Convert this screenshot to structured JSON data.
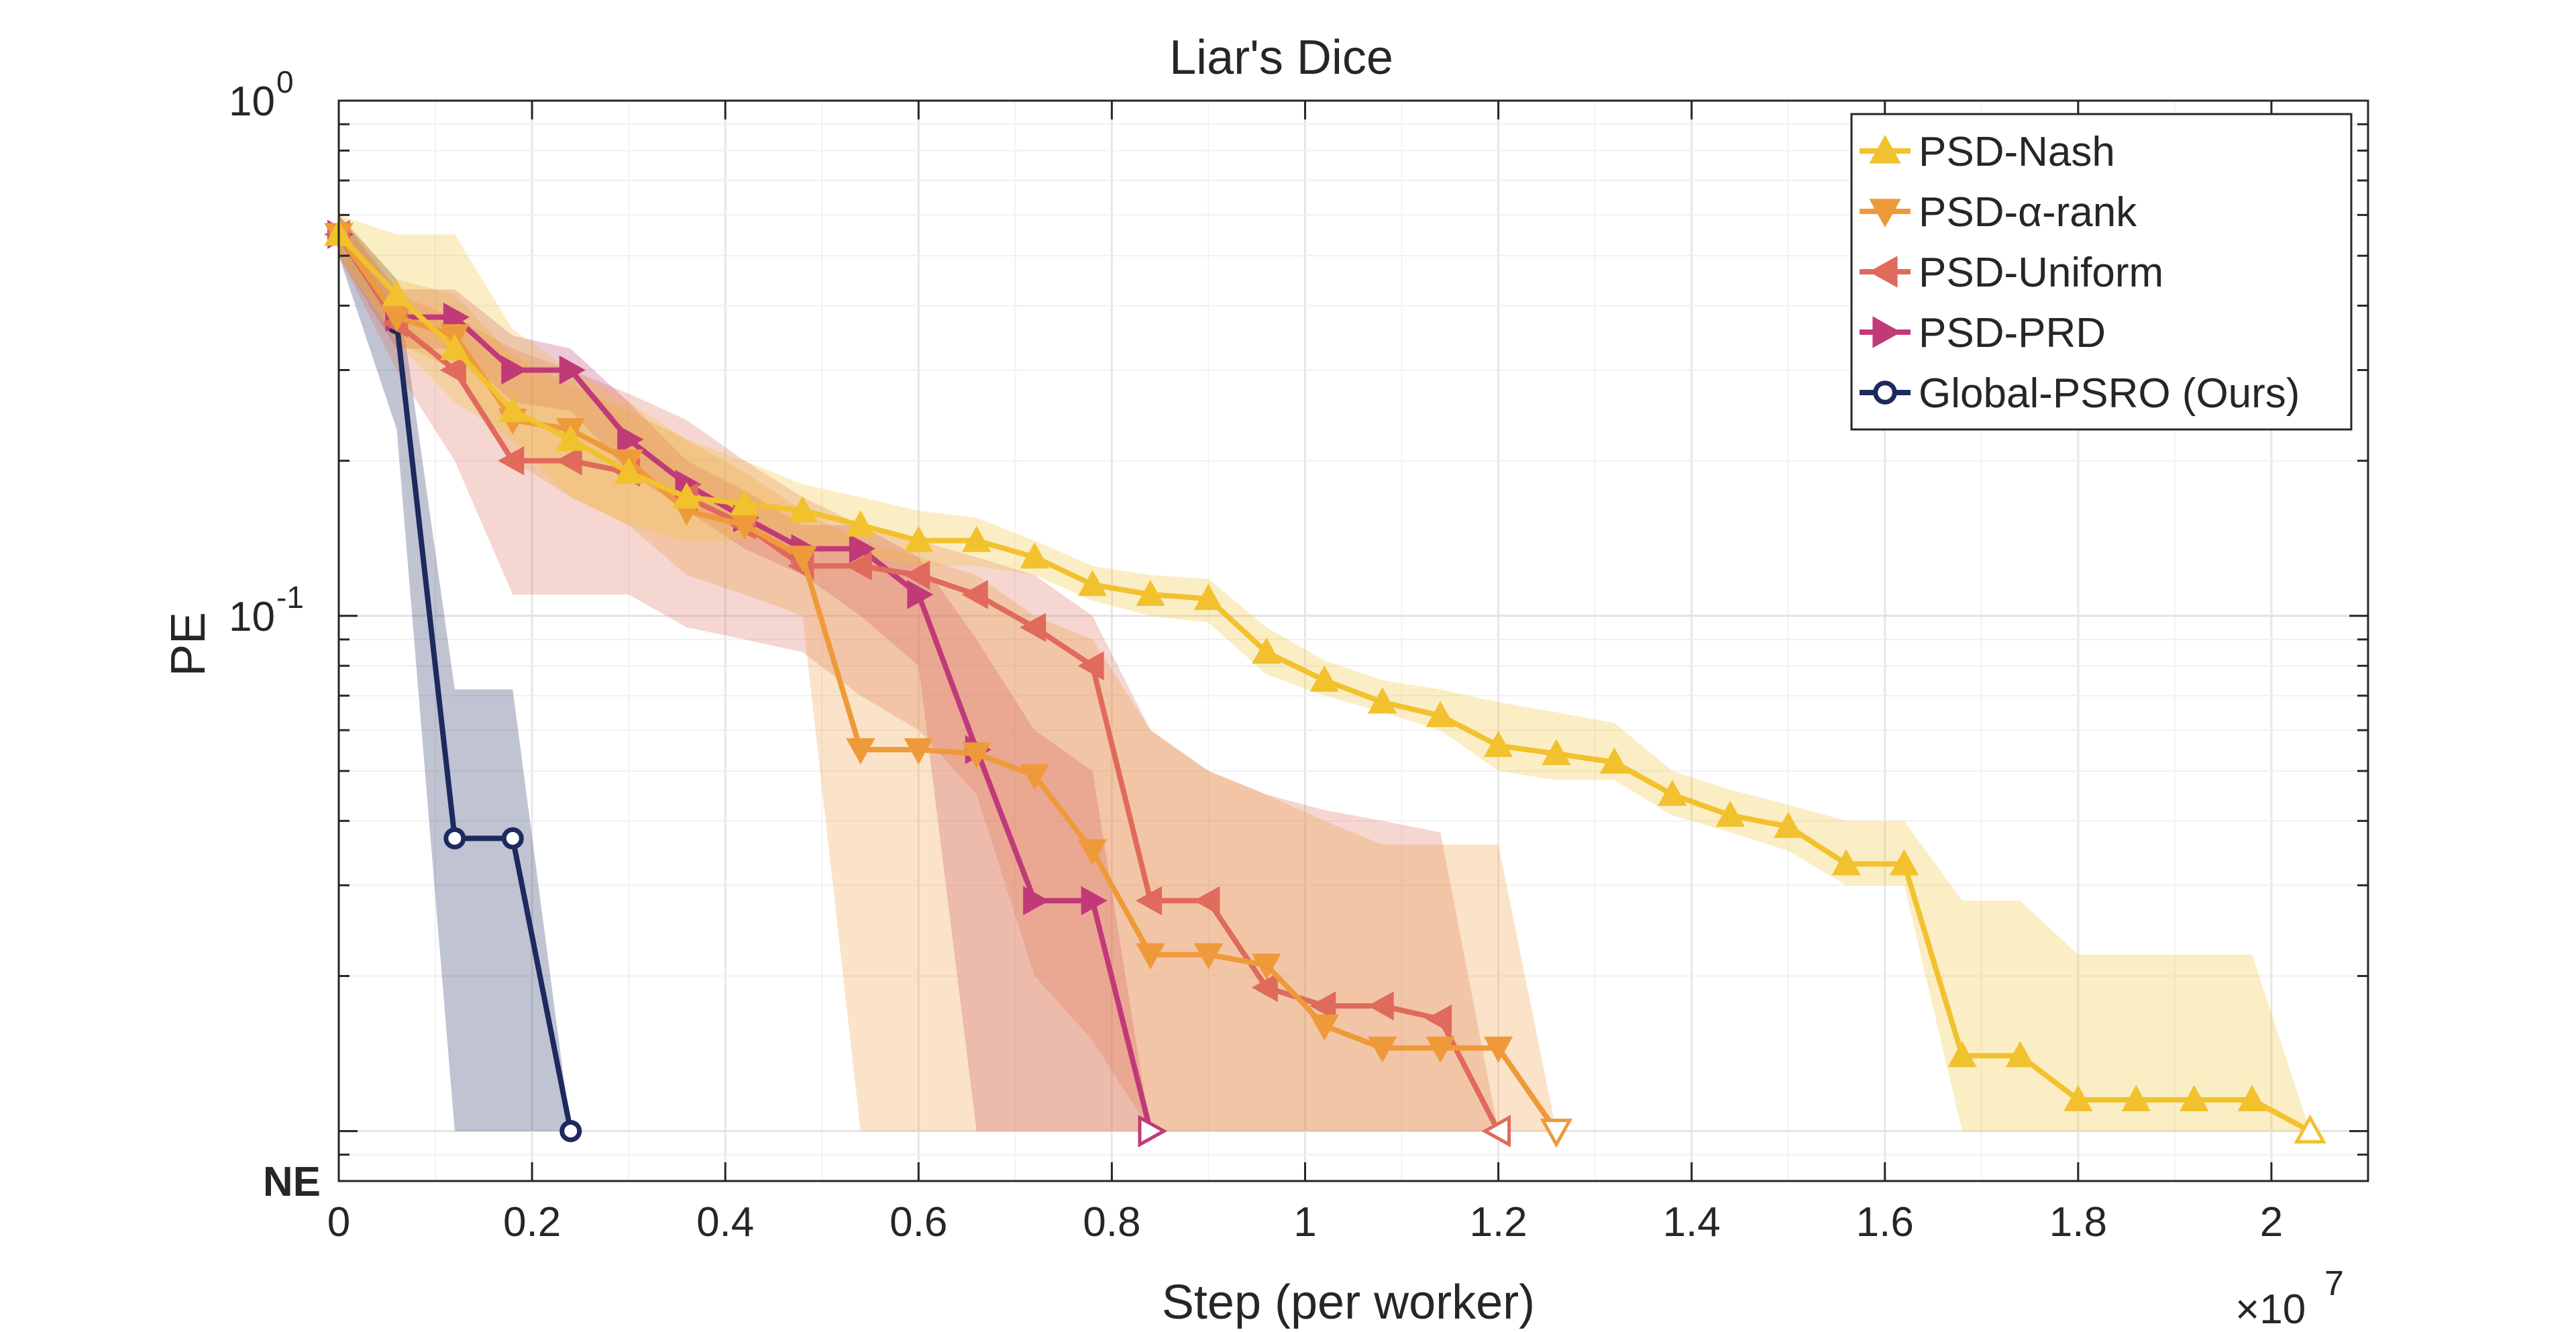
{
  "chart_data": {
    "type": "line",
    "title": "Liar's Dice",
    "xlabel": "Step (per worker)",
    "ylabel": "PE",
    "x_multiplier": "×10",
    "x_multiplier_exp": "7",
    "xlim": [
      0,
      2.1
    ],
    "ylim": [
      0.008,
      1
    ],
    "yscale": "log",
    "grid": true,
    "legend_position": "top-right",
    "x_ticks": [
      0,
      0.2,
      0.4,
      0.6,
      0.8,
      1,
      1.2,
      1.4,
      1.6,
      1.8,
      2
    ],
    "x_tick_labels": [
      "0",
      "0.2",
      "0.4",
      "0.6",
      "0.8",
      "1",
      "1.2",
      "1.4",
      "1.6",
      "1.8",
      "2"
    ],
    "y_ticks": [
      {
        "value": 1,
        "base": "10",
        "exp": "0"
      },
      {
        "value": 0.1,
        "base": "10",
        "exp": "-1"
      }
    ],
    "ne_label": "NE",
    "series": [
      {
        "name": "PSD-Nash",
        "color": "#F2C12E",
        "marker": "triangle-up",
        "x": [
          0,
          0.06,
          0.12,
          0.18,
          0.24,
          0.3,
          0.36,
          0.42,
          0.48,
          0.54,
          0.6,
          0.66,
          0.72,
          0.78,
          0.84,
          0.9,
          0.96,
          1.02,
          1.08,
          1.14,
          1.2,
          1.26,
          1.32,
          1.38,
          1.44,
          1.5,
          1.56,
          1.62,
          1.68,
          1.74,
          1.8,
          1.86,
          1.92,
          1.98,
          2.04
        ],
        "y": [
          0.55,
          0.42,
          0.33,
          0.25,
          0.22,
          0.19,
          0.17,
          0.165,
          0.16,
          0.15,
          0.14,
          0.14,
          0.13,
          0.115,
          0.11,
          0.108,
          0.085,
          0.075,
          0.068,
          0.064,
          0.056,
          0.054,
          0.052,
          0.045,
          0.041,
          0.039,
          0.033,
          0.033,
          0.014,
          0.014,
          0.0115,
          0.0115,
          0.0115,
          0.0115,
          0.01
        ],
        "upper": [
          0.6,
          0.55,
          0.55,
          0.36,
          0.3,
          0.26,
          0.22,
          0.2,
          0.18,
          0.17,
          0.16,
          0.155,
          0.14,
          0.125,
          0.12,
          0.118,
          0.095,
          0.082,
          0.075,
          0.072,
          0.068,
          0.065,
          0.062,
          0.05,
          0.046,
          0.043,
          0.04,
          0.04,
          0.028,
          0.028,
          0.022,
          0.022,
          0.022,
          0.022,
          0.01
        ],
        "lower": [
          0.5,
          0.34,
          0.26,
          0.22,
          0.17,
          0.15,
          0.14,
          0.14,
          0.14,
          0.13,
          0.125,
          0.125,
          0.12,
          0.107,
          0.1,
          0.097,
          0.077,
          0.07,
          0.065,
          0.06,
          0.05,
          0.048,
          0.048,
          0.041,
          0.038,
          0.035,
          0.03,
          0.03,
          0.01,
          0.01,
          0.01,
          0.01,
          0.01,
          0.01,
          0.01
        ]
      },
      {
        "name": "PSD-α-rank",
        "color": "#EE9A3A",
        "marker": "triangle-down",
        "x": [
          0,
          0.06,
          0.12,
          0.18,
          0.24,
          0.3,
          0.36,
          0.42,
          0.48,
          0.54,
          0.6,
          0.66,
          0.72,
          0.78,
          0.84,
          0.9,
          0.96,
          1.02,
          1.08,
          1.14,
          1.2,
          1.26
        ],
        "y": [
          0.55,
          0.38,
          0.35,
          0.24,
          0.23,
          0.2,
          0.16,
          0.15,
          0.13,
          0.055,
          0.055,
          0.054,
          0.049,
          0.035,
          0.022,
          0.022,
          0.021,
          0.016,
          0.0145,
          0.0145,
          0.0145,
          0.01
        ],
        "upper": [
          0.6,
          0.45,
          0.42,
          0.32,
          0.28,
          0.25,
          0.22,
          0.19,
          0.16,
          0.14,
          0.13,
          0.12,
          0.1,
          0.09,
          0.06,
          0.05,
          0.045,
          0.04,
          0.036,
          0.036,
          0.036,
          0.01
        ],
        "lower": [
          0.5,
          0.34,
          0.3,
          0.2,
          0.17,
          0.15,
          0.12,
          0.11,
          0.1,
          0.01,
          0.01,
          0.01,
          0.01,
          0.01,
          0.01,
          0.01,
          0.01,
          0.01,
          0.01,
          0.01,
          0.01,
          0.01
        ]
      },
      {
        "name": "PSD-Uniform",
        "color": "#E06A5B",
        "marker": "triangle-left",
        "x": [
          0,
          0.06,
          0.12,
          0.18,
          0.24,
          0.3,
          0.36,
          0.42,
          0.48,
          0.54,
          0.6,
          0.66,
          0.72,
          0.78,
          0.84,
          0.9,
          0.96,
          1.02,
          1.08,
          1.14,
          1.2
        ],
        "y": [
          0.55,
          0.37,
          0.3,
          0.2,
          0.2,
          0.19,
          0.17,
          0.15,
          0.125,
          0.125,
          0.12,
          0.11,
          0.095,
          0.08,
          0.028,
          0.028,
          0.019,
          0.0175,
          0.0175,
          0.0165,
          0.01
        ],
        "upper": [
          0.6,
          0.42,
          0.38,
          0.33,
          0.3,
          0.27,
          0.24,
          0.2,
          0.17,
          0.15,
          0.14,
          0.13,
          0.12,
          0.1,
          0.06,
          0.05,
          0.045,
          0.042,
          0.04,
          0.038,
          0.01
        ],
        "lower": [
          0.5,
          0.3,
          0.2,
          0.11,
          0.11,
          0.11,
          0.095,
          0.09,
          0.085,
          0.07,
          0.06,
          0.045,
          0.02,
          0.015,
          0.01,
          0.01,
          0.01,
          0.01,
          0.01,
          0.01,
          0.01
        ]
      },
      {
        "name": "PSD-PRD",
        "color": "#C13A78",
        "marker": "triangle-right",
        "x": [
          0,
          0.06,
          0.12,
          0.18,
          0.24,
          0.3,
          0.36,
          0.42,
          0.48,
          0.54,
          0.6,
          0.66,
          0.72,
          0.78,
          0.84
        ],
        "y": [
          0.55,
          0.38,
          0.38,
          0.3,
          0.3,
          0.22,
          0.18,
          0.155,
          0.135,
          0.135,
          0.11,
          0.055,
          0.028,
          0.028,
          0.01
        ],
        "upper": [
          0.6,
          0.43,
          0.43,
          0.35,
          0.33,
          0.26,
          0.2,
          0.175,
          0.15,
          0.15,
          0.13,
          0.09,
          0.06,
          0.05,
          0.01
        ],
        "lower": [
          0.5,
          0.33,
          0.33,
          0.26,
          0.25,
          0.19,
          0.16,
          0.135,
          0.12,
          0.1,
          0.08,
          0.01,
          0.01,
          0.01,
          0.01
        ]
      },
      {
        "name": "Global-PSRO (Ours)",
        "color": "#1C2A5E",
        "marker": "circle",
        "x": [
          0,
          0.06,
          0.12,
          0.18,
          0.24
        ],
        "y": [
          0.55,
          0.37,
          0.037,
          0.037,
          0.01
        ],
        "upper": [
          0.6,
          0.45,
          0.072,
          0.072,
          0.01
        ],
        "lower": [
          0.5,
          0.23,
          0.01,
          0.01,
          0.01
        ]
      }
    ]
  }
}
